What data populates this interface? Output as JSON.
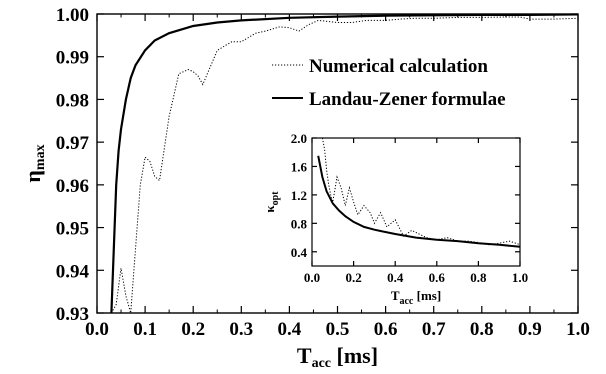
{
  "chart_data": [
    {
      "type": "line",
      "xlabel": {
        "main": "T",
        "sub": "acc",
        "unit": " [ms]"
      },
      "ylabel": {
        "main": "η",
        "sub": "max"
      },
      "xlim": [
        0.0,
        1.0
      ],
      "ylim": [
        0.93,
        1.0
      ],
      "xticks": [
        "0.0",
        "0.1",
        "0.2",
        "0.3",
        "0.4",
        "0.5",
        "0.6",
        "0.7",
        "0.8",
        "0.9",
        "1.0"
      ],
      "yticks": [
        "0.93",
        "0.94",
        "0.95",
        "0.96",
        "0.97",
        "0.98",
        "0.99",
        "1.00"
      ],
      "legend_position": "top-right",
      "series": [
        {
          "name": "Numerical calculation",
          "style": "dotted",
          "x": [
            0.03,
            0.04,
            0.05,
            0.06,
            0.07,
            0.08,
            0.09,
            0.1,
            0.11,
            0.12,
            0.13,
            0.15,
            0.17,
            0.19,
            0.2,
            0.21,
            0.22,
            0.25,
            0.28,
            0.3,
            0.33,
            0.35,
            0.38,
            0.4,
            0.42,
            0.44,
            0.46,
            0.5,
            0.53,
            0.56,
            0.6,
            0.63,
            0.66,
            0.7,
            0.75,
            0.8,
            0.85,
            0.88,
            0.9,
            0.95,
            1.0
          ],
          "y": [
            0.93,
            0.932,
            0.9405,
            0.934,
            0.93,
            0.945,
            0.96,
            0.9665,
            0.9655,
            0.962,
            0.961,
            0.976,
            0.986,
            0.987,
            0.9865,
            0.9855,
            0.9835,
            0.9915,
            0.9935,
            0.9935,
            0.9955,
            0.996,
            0.997,
            0.9968,
            0.996,
            0.9975,
            0.9985,
            0.998,
            0.998,
            0.9985,
            0.9985,
            0.9988,
            0.999,
            0.999,
            0.9992,
            0.9992,
            0.9993,
            0.9993,
            0.9988,
            0.9988,
            0.999
          ]
        },
        {
          "name": "Landau-Zener formulae",
          "style": "solid",
          "x": [
            0.03,
            0.035,
            0.04,
            0.045,
            0.05,
            0.06,
            0.07,
            0.08,
            0.1,
            0.12,
            0.15,
            0.2,
            0.25,
            0.3,
            0.4,
            0.5,
            0.6,
            0.7,
            0.8,
            0.9,
            1.0
          ],
          "y": [
            0.93,
            0.945,
            0.96,
            0.968,
            0.973,
            0.98,
            0.985,
            0.988,
            0.9915,
            0.9938,
            0.9955,
            0.9972,
            0.998,
            0.9985,
            0.9991,
            0.9994,
            0.9996,
            0.9997,
            0.9998,
            0.9998,
            0.9999
          ]
        }
      ]
    },
    {
      "type": "line",
      "xlabel": {
        "main": "T",
        "sub": "acc",
        "unit": " [ms]"
      },
      "ylabel": {
        "main": "κ",
        "sub": "opt"
      },
      "xlim": [
        0.0,
        1.0
      ],
      "ylim": [
        0.2,
        2.0
      ],
      "xticks": [
        "0.0",
        "0.2",
        "0.4",
        "0.6",
        "0.8",
        "1.0"
      ],
      "yticks": [
        "0.4",
        "0.8",
        "1.2",
        "1.6",
        "2.0"
      ],
      "series": [
        {
          "style": "dotted",
          "x": [
            0.05,
            0.06,
            0.07,
            0.08,
            0.09,
            0.1,
            0.12,
            0.14,
            0.16,
            0.18,
            0.2,
            0.22,
            0.25,
            0.28,
            0.3,
            0.33,
            0.36,
            0.4,
            0.44,
            0.48,
            0.55,
            0.6,
            0.65,
            0.7,
            0.75,
            0.8,
            0.85,
            0.9,
            0.95,
            1.0
          ],
          "y": [
            2.0,
            1.85,
            1.55,
            1.35,
            1.2,
            1.1,
            1.45,
            1.3,
            1.05,
            1.3,
            1.1,
            0.92,
            1.05,
            0.95,
            0.8,
            0.95,
            0.75,
            0.85,
            0.62,
            0.7,
            0.6,
            0.57,
            0.6,
            0.55,
            0.55,
            0.53,
            0.5,
            0.52,
            0.55,
            0.5
          ]
        },
        {
          "style": "solid",
          "x": [
            0.03,
            0.05,
            0.07,
            0.1,
            0.13,
            0.16,
            0.2,
            0.25,
            0.3,
            0.35,
            0.4,
            0.5,
            0.6,
            0.7,
            0.8,
            0.9,
            1.0
          ],
          "y": [
            1.75,
            1.45,
            1.25,
            1.08,
            0.98,
            0.9,
            0.82,
            0.75,
            0.71,
            0.68,
            0.65,
            0.6,
            0.57,
            0.55,
            0.52,
            0.5,
            0.47
          ]
        }
      ]
    }
  ]
}
